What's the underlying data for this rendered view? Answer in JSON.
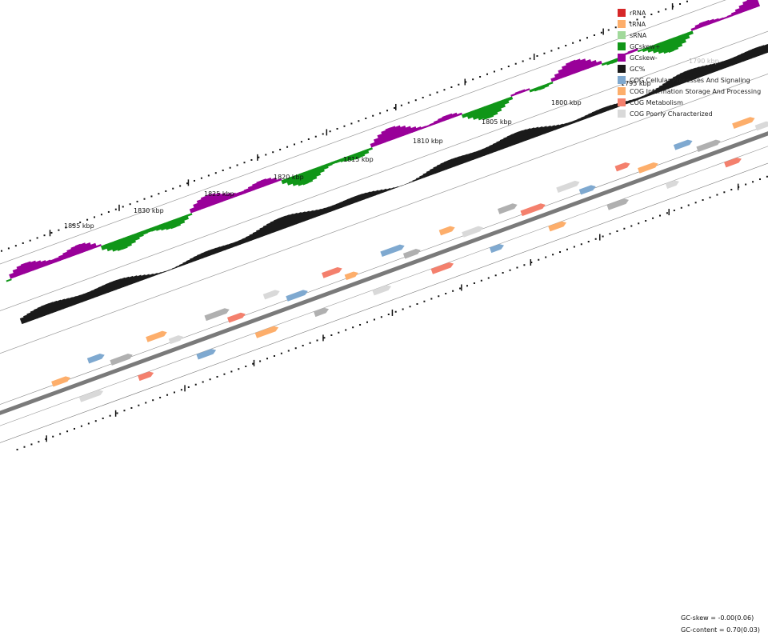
{
  "legend": {
    "items": [
      {
        "label": "rRNA",
        "color": "#d62728"
      },
      {
        "label": "tRNA",
        "color": "#fdae6b"
      },
      {
        "label": "sRNA",
        "color": "#a1d99b"
      },
      {
        "label": "GCskew+",
        "color": "#109618"
      },
      {
        "label": "GCskew-",
        "color": "#990099"
      },
      {
        "label": "GC%",
        "color": "#1a1a1a"
      },
      {
        "label": "COG Cellular Processes And Signaling",
        "color": "#7fa9d0"
      },
      {
        "label": "COG Information Storage And Processing",
        "color": "#fdae6b"
      },
      {
        "label": "COG Metabolism",
        "color": "#f4806d"
      },
      {
        "label": "COG Poorly Characterized",
        "color": "#d9d9d9"
      }
    ]
  },
  "stats": {
    "gc_skew": "GC-skew = -0.00(0.06)",
    "gc_content": "GC-content = 0.70(0.03)"
  },
  "axis": {
    "labels": [
      "1835 kbp",
      "1830 kbp",
      "1825 kbp",
      "1820 kbp",
      "1815 kbp",
      "1810 kbp",
      "1805 kbp",
      "1800 kbp",
      "1795 kbp",
      "1790 kbp"
    ],
    "faded_label": "1790 kbp"
  }
}
